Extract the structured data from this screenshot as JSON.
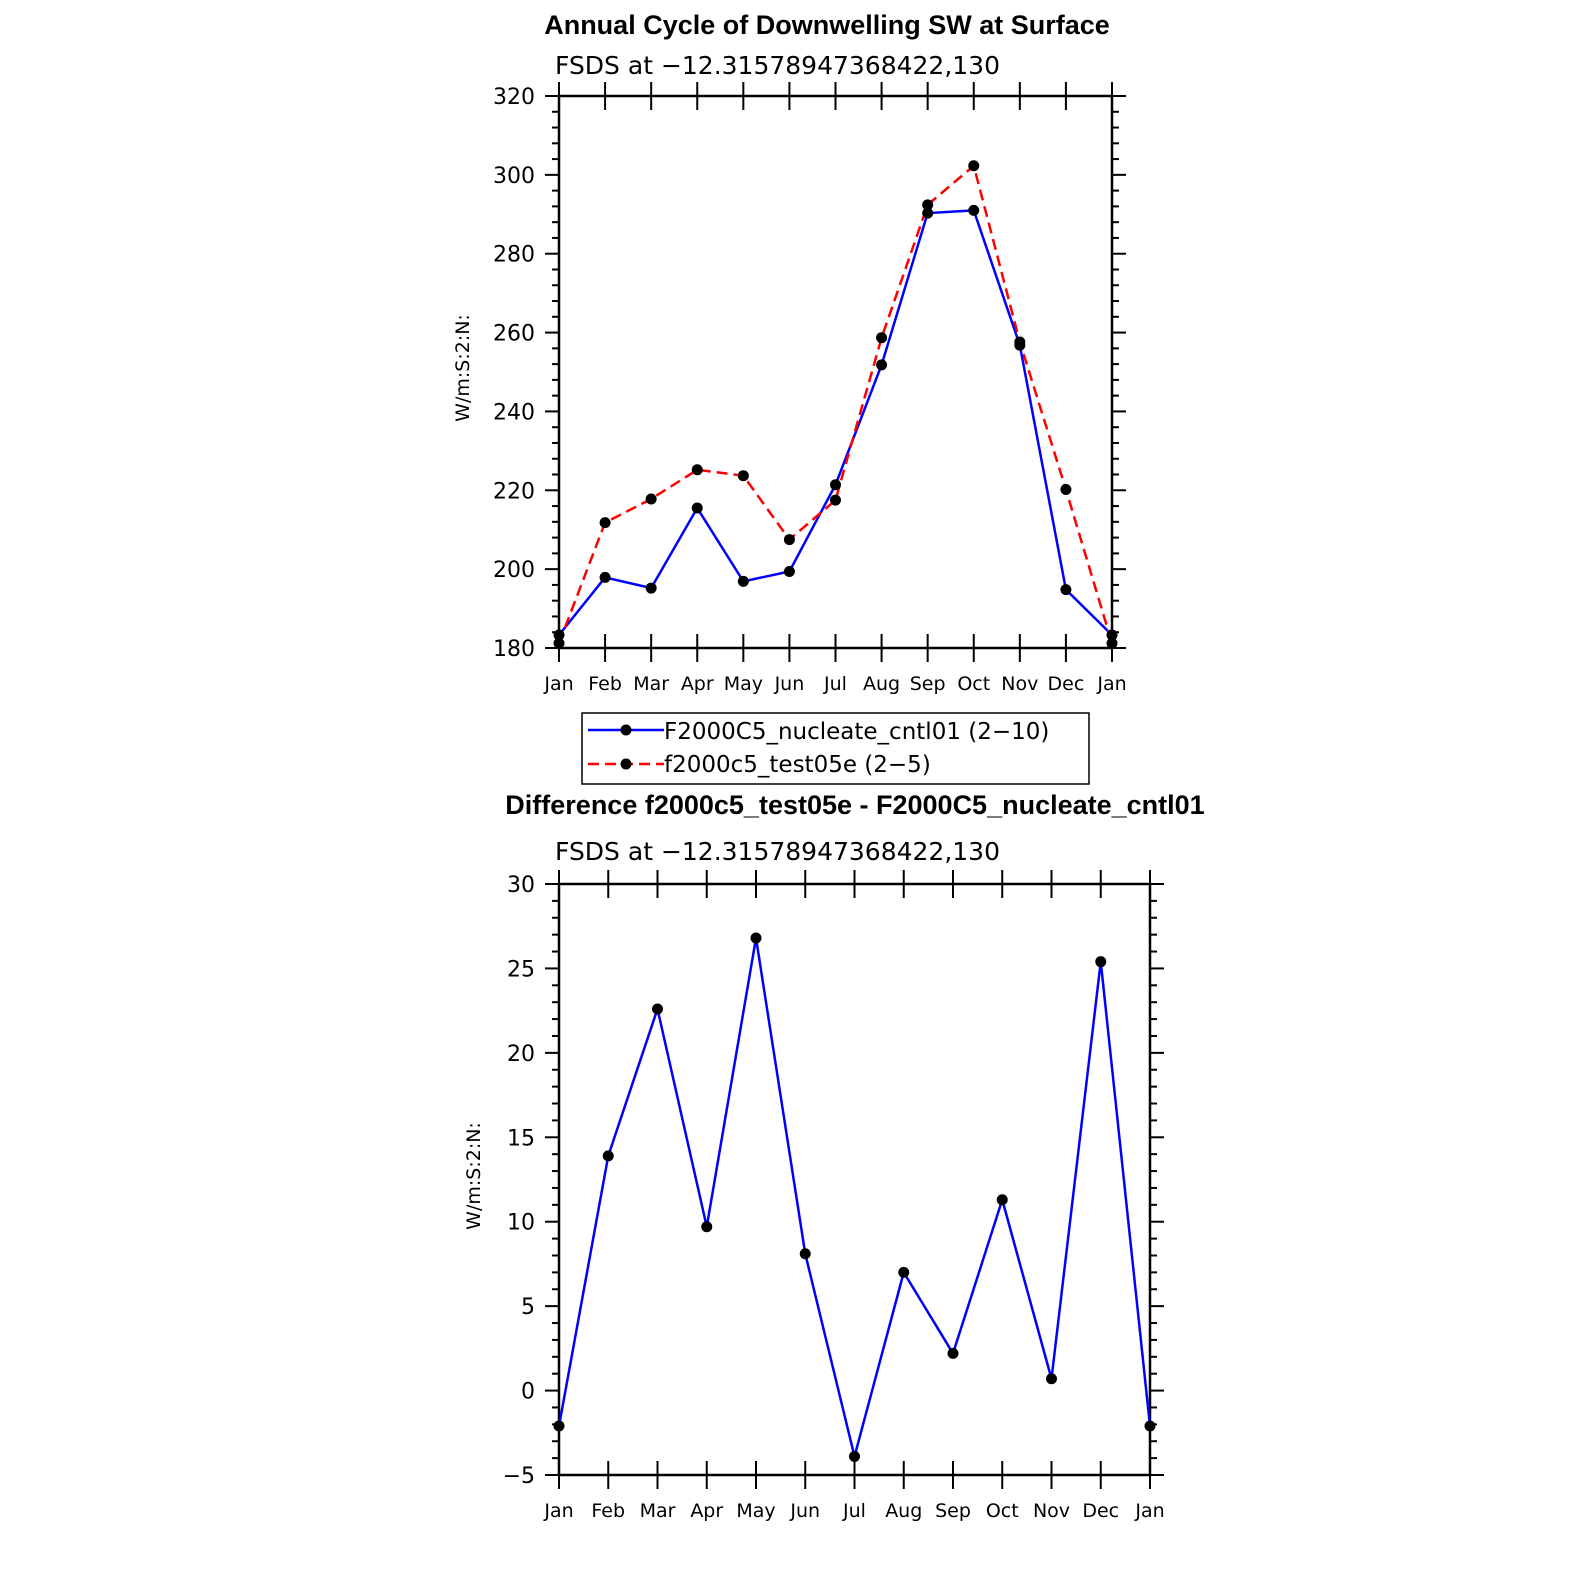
{
  "chart_data": [
    {
      "type": "line",
      "title": "Annual Cycle of Downwelling SW at Surface",
      "subtitle": "FSDS at −12.31578947368422,130",
      "ylabel": "W/m:S:2:N:",
      "ylim": [
        180,
        320
      ],
      "yticks": [
        "320",
        "300",
        "280",
        "260",
        "240",
        "220",
        "200",
        "180"
      ],
      "ytick_values": [
        320,
        300,
        280,
        260,
        240,
        220,
        200,
        180
      ],
      "categories": [
        "Jan",
        "Feb",
        "Mar",
        "Apr",
        "May",
        "Jun",
        "Jul",
        "Aug",
        "Sep",
        "Oct",
        "Nov",
        "Dec",
        "Jan"
      ],
      "series": [
        {
          "name": "F2000C5_nucleate_cntl01 (2−10)",
          "color": "#0000ff",
          "dash": "solid",
          "values": [
            183.3,
            197.9,
            195.2,
            215.5,
            196.9,
            199.4,
            221.4,
            251.8,
            290.3,
            291.0,
            256.8,
            194.8,
            183.3
          ]
        },
        {
          "name": "f2000c5_test05e (2−5)",
          "color": "#ff0000",
          "dash": "dashed",
          "values": [
            181.2,
            211.8,
            217.8,
            225.2,
            223.7,
            207.5,
            217.5,
            258.7,
            292.4,
            302.3,
            257.6,
            220.2,
            181.2
          ]
        }
      ],
      "legend": "below"
    },
    {
      "type": "line",
      "title": "Difference f2000c5_test05e - F2000C5_nucleate_cntl01",
      "subtitle": "FSDS at −12.31578947368422,130",
      "ylabel": "W/m:S:2:N:",
      "ylim": [
        -5,
        30
      ],
      "yticks": [
        "30",
        "25",
        "20",
        "15",
        "10",
        "5",
        "0",
        "−5"
      ],
      "ytick_values": [
        30,
        25,
        20,
        15,
        10,
        5,
        0,
        -5
      ],
      "categories": [
        "Jan",
        "Feb",
        "Mar",
        "Apr",
        "May",
        "Jun",
        "Jul",
        "Aug",
        "Sep",
        "Oct",
        "Nov",
        "Dec",
        "Jan"
      ],
      "series": [
        {
          "color": "#0000ff",
          "dash": "solid",
          "values": [
            -2.1,
            13.9,
            22.6,
            9.7,
            26.8,
            8.1,
            -3.9,
            7.0,
            2.2,
            11.3,
            0.7,
            25.4,
            -2.1
          ]
        }
      ]
    }
  ]
}
